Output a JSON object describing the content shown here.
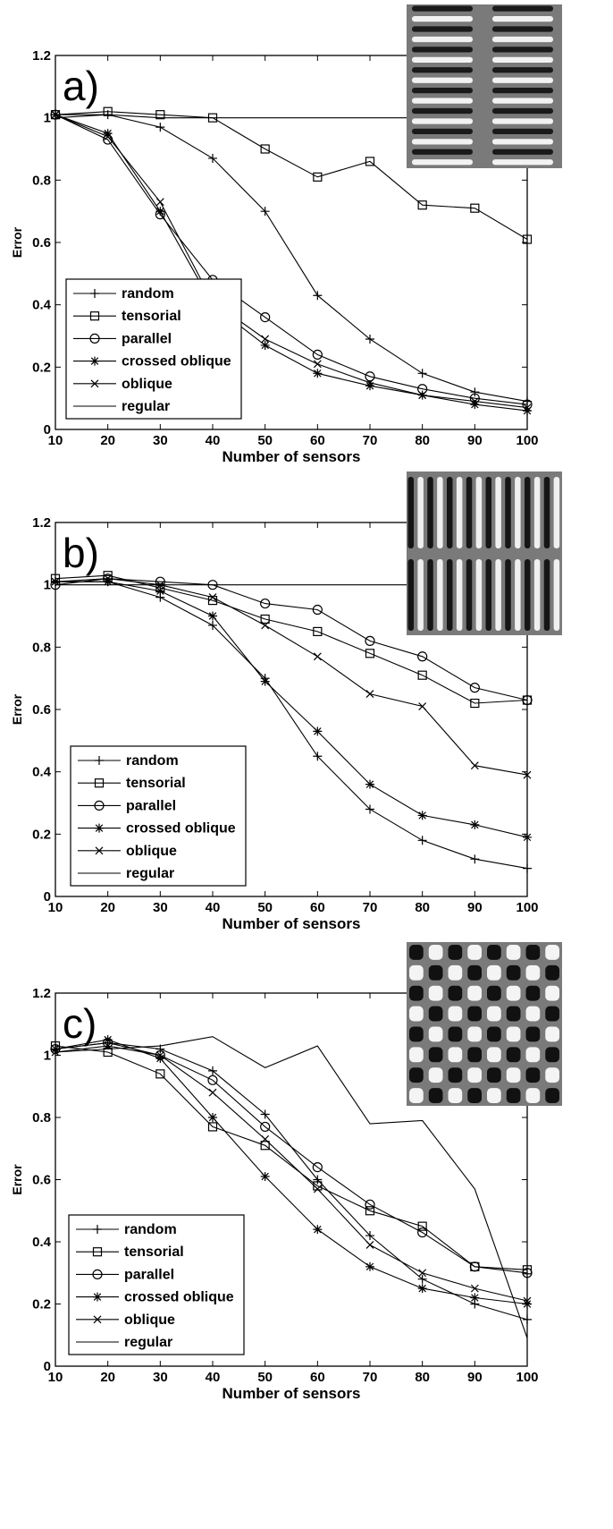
{
  "chart_data": [
    {
      "type": "line",
      "panel_label": "a)",
      "xlabel": "Number of sensors",
      "ylabel": "Error",
      "xlim": [
        10,
        100
      ],
      "ylim": [
        0,
        1.2
      ],
      "xticks": [
        "10",
        "20",
        "30",
        "40",
        "50",
        "60",
        "70",
        "80",
        "90",
        "100"
      ],
      "yticks": [
        "0",
        "0.2",
        "0.4",
        "0.6",
        "0.8",
        "1",
        "1.2"
      ],
      "legend_position": "bottom-left",
      "inset_pattern": "horizontal-stripes",
      "x": [
        10,
        20,
        30,
        40,
        50,
        60,
        70,
        80,
        90,
        100
      ],
      "series": [
        {
          "name": "random",
          "marker": "plus",
          "values": [
            1.01,
            1.01,
            0.97,
            0.87,
            0.7,
            0.43,
            0.29,
            0.18,
            0.12,
            0.09
          ]
        },
        {
          "name": "tensorial",
          "marker": "square",
          "values": [
            1.01,
            1.02,
            1.01,
            1.0,
            0.9,
            0.81,
            0.86,
            0.72,
            0.71,
            0.61
          ]
        },
        {
          "name": "parallel",
          "marker": "circle",
          "values": [
            1.01,
            0.93,
            0.69,
            0.48,
            0.36,
            0.24,
            0.17,
            0.13,
            0.1,
            0.08
          ]
        },
        {
          "name": "crossed oblique",
          "marker": "asterisk",
          "values": [
            1.01,
            0.95,
            0.7,
            0.4,
            0.27,
            0.18,
            0.14,
            0.11,
            0.08,
            0.06
          ]
        },
        {
          "name": "oblique",
          "marker": "x",
          "values": [
            1.01,
            0.94,
            0.73,
            0.41,
            0.29,
            0.21,
            0.15,
            0.11,
            0.09,
            0.07
          ]
        },
        {
          "name": "regular",
          "marker": "none",
          "values": [
            1.0,
            1.01,
            1.0,
            1.0,
            1.0,
            1.0,
            1.0,
            1.0,
            1.0,
            1.0
          ]
        }
      ]
    },
    {
      "type": "line",
      "panel_label": "b)",
      "xlabel": "Number of sensors",
      "ylabel": "Error",
      "xlim": [
        10,
        100
      ],
      "ylim": [
        0,
        1.2
      ],
      "xticks": [
        "10",
        "20",
        "30",
        "40",
        "50",
        "60",
        "70",
        "80",
        "90",
        "100"
      ],
      "yticks": [
        "0",
        "0.2",
        "0.4",
        "0.6",
        "0.8",
        "1",
        "1.2"
      ],
      "legend_position": "bottom-left",
      "inset_pattern": "vertical-stripes",
      "x": [
        10,
        20,
        30,
        40,
        50,
        60,
        70,
        80,
        90,
        100
      ],
      "series": [
        {
          "name": "random",
          "marker": "plus",
          "values": [
            1.01,
            1.01,
            0.96,
            0.87,
            0.7,
            0.45,
            0.28,
            0.18,
            0.12,
            0.09
          ]
        },
        {
          "name": "tensorial",
          "marker": "square",
          "values": [
            1.02,
            1.03,
            0.99,
            0.95,
            0.89,
            0.85,
            0.78,
            0.71,
            0.62,
            0.63
          ]
        },
        {
          "name": "parallel",
          "marker": "circle",
          "values": [
            1.0,
            1.02,
            1.01,
            1.0,
            0.94,
            0.92,
            0.82,
            0.77,
            0.67,
            0.63
          ]
        },
        {
          "name": "crossed oblique",
          "marker": "asterisk",
          "values": [
            1.01,
            1.01,
            0.98,
            0.9,
            0.69,
            0.53,
            0.36,
            0.26,
            0.23,
            0.19
          ]
        },
        {
          "name": "oblique",
          "marker": "x",
          "values": [
            1.01,
            1.02,
            1.0,
            0.96,
            0.87,
            0.77,
            0.65,
            0.61,
            0.42,
            0.39
          ]
        },
        {
          "name": "regular",
          "marker": "none",
          "values": [
            1.0,
            1.0,
            1.0,
            1.0,
            1.0,
            1.0,
            1.0,
            1.0,
            1.0,
            1.0
          ]
        }
      ]
    },
    {
      "type": "line",
      "panel_label": "c)",
      "xlabel": "Number of sensors",
      "ylabel": "Error",
      "xlim": [
        10,
        100
      ],
      "ylim": [
        0,
        1.2
      ],
      "xticks": [
        "10",
        "20",
        "30",
        "40",
        "50",
        "60",
        "70",
        "80",
        "90",
        "100"
      ],
      "yticks": [
        "0",
        "0.2",
        "0.4",
        "0.6",
        "0.8",
        "1",
        "1.2"
      ],
      "legend_position": "bottom-left",
      "inset_pattern": "checkerboard",
      "x": [
        10,
        20,
        30,
        40,
        50,
        60,
        70,
        80,
        90,
        100
      ],
      "series": [
        {
          "name": "random",
          "marker": "plus",
          "values": [
            1.02,
            1.04,
            1.02,
            0.95,
            0.81,
            0.6,
            0.42,
            0.28,
            0.2,
            0.15
          ]
        },
        {
          "name": "tensorial",
          "marker": "square",
          "values": [
            1.03,
            1.01,
            0.94,
            0.77,
            0.71,
            0.58,
            0.5,
            0.45,
            0.32,
            0.31
          ]
        },
        {
          "name": "parallel",
          "marker": "circle",
          "values": [
            1.02,
            1.04,
            1.0,
            0.92,
            0.77,
            0.64,
            0.52,
            0.43,
            0.32,
            0.3
          ]
        },
        {
          "name": "crossed oblique",
          "marker": "asterisk",
          "values": [
            1.02,
            1.05,
            0.99,
            0.8,
            0.61,
            0.44,
            0.32,
            0.25,
            0.22,
            0.2
          ]
        },
        {
          "name": "oblique",
          "marker": "x",
          "values": [
            1.01,
            1.03,
            1.0,
            0.88,
            0.73,
            0.57,
            0.39,
            0.3,
            0.25,
            0.21
          ]
        },
        {
          "name": "regular",
          "marker": "none",
          "values": [
            1.01,
            1.02,
            1.03,
            1.06,
            0.96,
            1.03,
            0.78,
            0.79,
            0.57,
            0.09
          ]
        }
      ]
    }
  ]
}
